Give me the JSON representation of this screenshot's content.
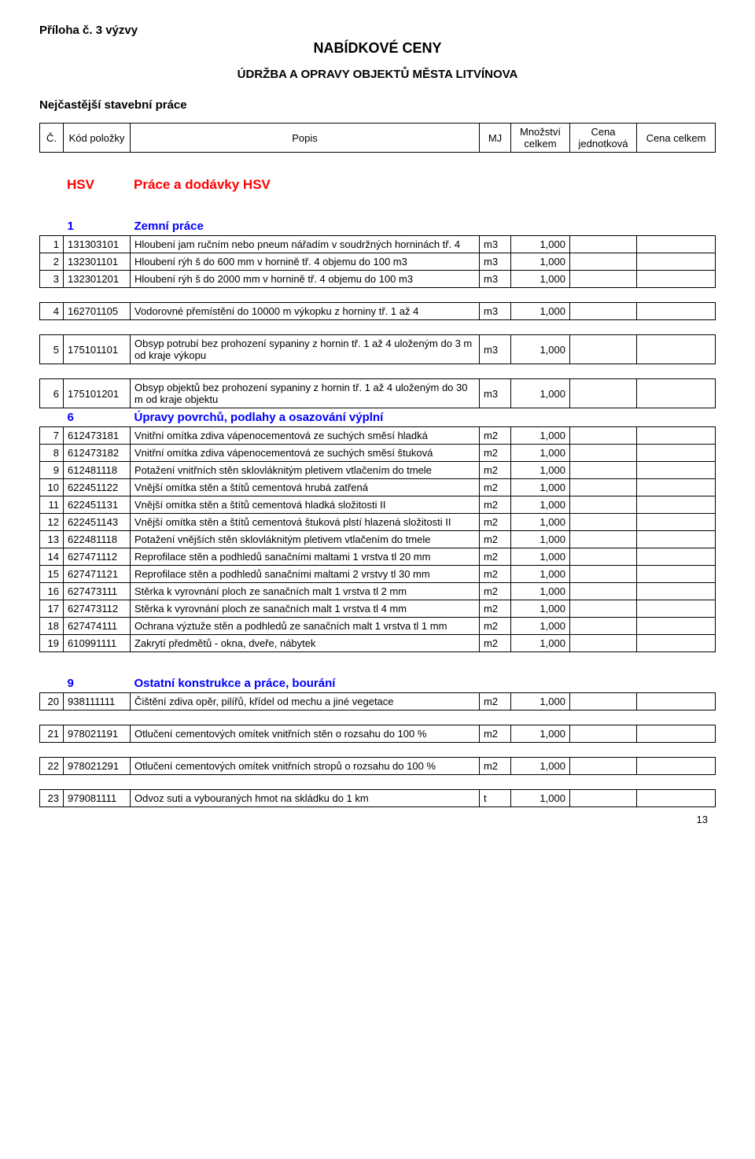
{
  "appendix": "Příloha č. 3 výzvy",
  "title": "NABÍDKOVÉ CENY",
  "subtitle": "ÚDRŽBA A OPRAVY OBJEKTŮ MĚSTA LITVÍNOVA",
  "subheading": "Nejčastější stavební práce",
  "header": {
    "col_num": "Č.",
    "col_code": "Kód položky",
    "col_popis": "Popis",
    "col_mj": "MJ",
    "col_mnoz": "Množství celkem",
    "col_cj": "Cena jednotková",
    "col_cc": "Cena celkem"
  },
  "hsv_label_code": "HSV",
  "hsv_label_text": "Práce a dodávky HSV",
  "section1": {
    "num": "1",
    "title": "Zemní práce"
  },
  "rows1": [
    {
      "n": "1",
      "code": "131303101",
      "popis": "Hloubení jam ručním nebo pneum nářadím v soudržných horninách tř. 4",
      "mj": "m3",
      "mnoz": "1,000"
    },
    {
      "n": "2",
      "code": "132301101",
      "popis": "Hloubení rýh š do 600 mm v hornině tř. 4 objemu do 100 m3",
      "mj": "m3",
      "mnoz": "1,000"
    },
    {
      "n": "3",
      "code": "132301201",
      "popis": "Hloubení rýh š do 2000 mm v hornině tř. 4 objemu do 100 m3",
      "mj": "m3",
      "mnoz": "1,000"
    },
    {
      "n": "4",
      "code": "162701105",
      "popis": "Vodorovné přemístění do 10000 m výkopku z horniny tř. 1 až 4",
      "mj": "m3",
      "mnoz": "1,000"
    },
    {
      "n": "5",
      "code": "175101101",
      "popis": "Obsyp potrubí bez prohození sypaniny z hornin tř. 1 až 4 uloženým do 3 m od kraje výkopu",
      "mj": "m3",
      "mnoz": "1,000"
    },
    {
      "n": "6",
      "code": "175101201",
      "popis": "Obsyp objektů bez prohození sypaniny z hornin tř. 1 až 4 uloženým do 30 m od kraje objektu",
      "mj": "m3",
      "mnoz": "1,000"
    }
  ],
  "section6": {
    "num": "6",
    "title": "Úpravy povrchů, podlahy a osazování výplní"
  },
  "rows6": [
    {
      "n": "7",
      "code": "612473181",
      "popis": "Vnitřní omítka zdiva vápenocementová ze suchých směsí hladká",
      "mj": "m2",
      "mnoz": "1,000"
    },
    {
      "n": "8",
      "code": "612473182",
      "popis": "Vnitřní omítka zdiva vápenocementová ze suchých směsí štuková",
      "mj": "m2",
      "mnoz": "1,000"
    },
    {
      "n": "9",
      "code": "612481118",
      "popis": "Potažení vnitřních stěn sklovláknitým pletivem vtlačením do tmele",
      "mj": "m2",
      "mnoz": "1,000"
    },
    {
      "n": "10",
      "code": "622451122",
      "popis": "Vnější omítka stěn a štítů cementová hrubá zatřená",
      "mj": "m2",
      "mnoz": "1,000"
    },
    {
      "n": "11",
      "code": "622451131",
      "popis": "Vnější omítka stěn a štítů cementová hladká složitosti II",
      "mj": "m2",
      "mnoz": "1,000"
    },
    {
      "n": "12",
      "code": "622451143",
      "popis": "Vnější omítka stěn a štítů cementová štuková plstí hlazená složitosti II",
      "mj": "m2",
      "mnoz": "1,000"
    },
    {
      "n": "13",
      "code": "622481118",
      "popis": "Potažení vnějších stěn sklovláknitým pletivem vtlačením do tmele",
      "mj": "m2",
      "mnoz": "1,000"
    },
    {
      "n": "14",
      "code": "627471112",
      "popis": "Reprofilace stěn a podhledů sanačními maltami 1 vrstva tl 20 mm",
      "mj": "m2",
      "mnoz": "1,000"
    },
    {
      "n": "15",
      "code": "627471121",
      "popis": "Reprofilace stěn a podhledů sanačními maltami 2 vrstvy tl 30 mm",
      "mj": "m2",
      "mnoz": "1,000"
    },
    {
      "n": "16",
      "code": "627473111",
      "popis": "Stěrka k vyrovnání ploch ze sanačních malt 1 vrstva tl 2 mm",
      "mj": "m2",
      "mnoz": "1,000"
    },
    {
      "n": "17",
      "code": "627473112",
      "popis": "Stěrka k vyrovnání ploch ze sanačních malt 1 vrstva tl 4 mm",
      "mj": "m2",
      "mnoz": "1,000"
    },
    {
      "n": "18",
      "code": "627474111",
      "popis": "Ochrana výztuže stěn a podhledů ze sanačních malt 1 vrstva tl 1 mm",
      "mj": "m2",
      "mnoz": "1,000"
    },
    {
      "n": "19",
      "code": "610991111",
      "popis": "Zakrytí předmětů - okna, dveře, nábytek",
      "mj": "m2",
      "mnoz": "1,000"
    }
  ],
  "section9": {
    "num": "9",
    "title": "Ostatní konstrukce a práce, bourání"
  },
  "rows9": [
    {
      "n": "20",
      "code": "938111111",
      "popis": "Čištění zdiva opěr, pilířů, křídel od mechu a jiné vegetace",
      "mj": "m2",
      "mnoz": "1,000"
    },
    {
      "n": "21",
      "code": "978021191",
      "popis": "Otlučení cementových omítek vnitřních stěn o rozsahu do 100 %",
      "mj": "m2",
      "mnoz": "1,000"
    },
    {
      "n": "22",
      "code": "978021291",
      "popis": "Otlučení cementových omítek vnitřních stropů o rozsahu do 100 %",
      "mj": "m2",
      "mnoz": "1,000"
    },
    {
      "n": "23",
      "code": "979081111",
      "popis": "Odvoz suti a vybouraných hmot na skládku do 1 km",
      "mj": "t",
      "mnoz": "1,000"
    }
  ],
  "page_number": "13"
}
